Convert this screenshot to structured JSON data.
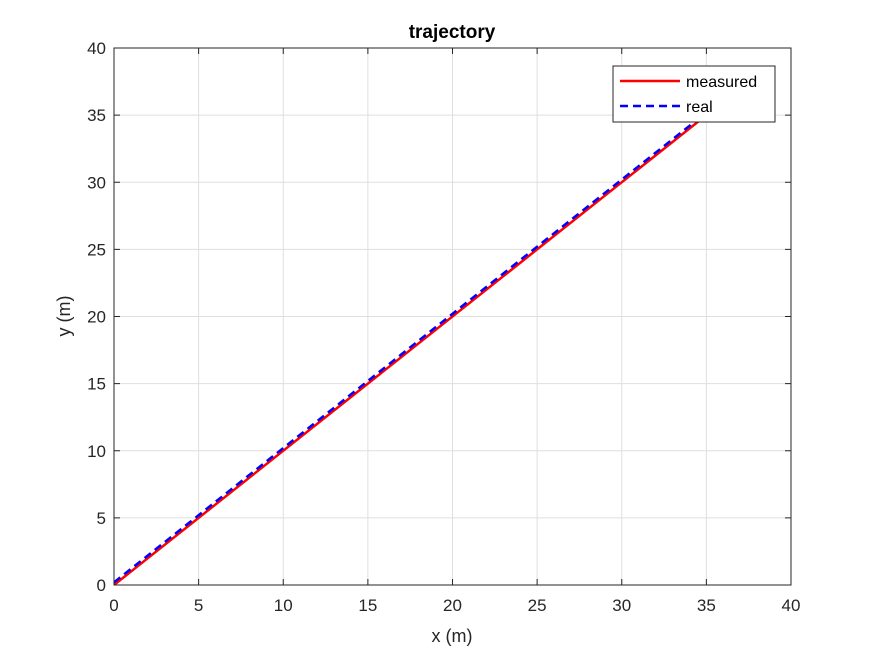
{
  "chart_data": {
    "type": "line",
    "title": "trajectory",
    "xlabel": "x (m)",
    "ylabel": "y (m)",
    "xlim": [
      0,
      40
    ],
    "ylim": [
      0,
      40
    ],
    "xticks": [
      0,
      5,
      10,
      15,
      20,
      25,
      30,
      35,
      40
    ],
    "yticks": [
      0,
      5,
      10,
      15,
      20,
      25,
      30,
      35,
      40
    ],
    "grid": true,
    "legend_position": "top-right",
    "series": [
      {
        "name": "measured",
        "color": "#ff0000",
        "style": "solid",
        "x": [
          0,
          35
        ],
        "y": [
          0,
          35
        ]
      },
      {
        "name": "real",
        "color": "#0000ff",
        "style": "dashed",
        "x": [
          0,
          35
        ],
        "y": [
          0.2,
          35.2
        ]
      }
    ]
  }
}
